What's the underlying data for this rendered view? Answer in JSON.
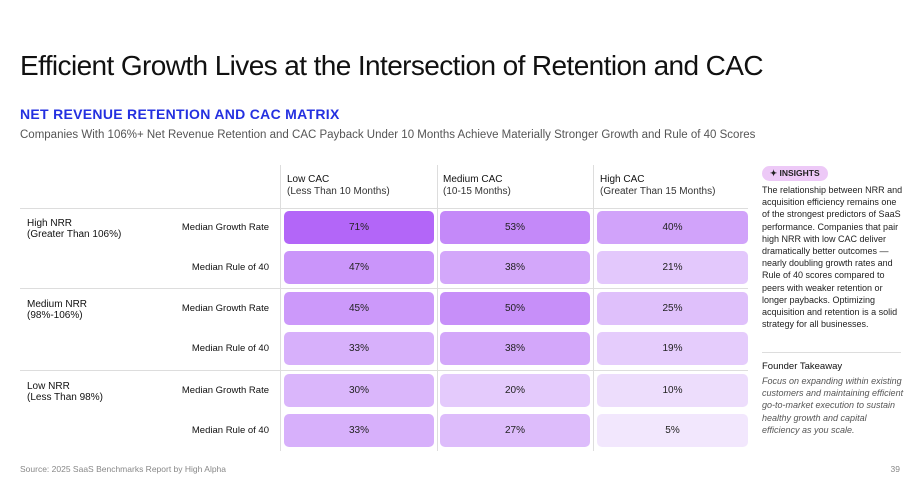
{
  "title": "Efficient Growth Lives at the Intersection of Retention and CAC",
  "subtitle": "NET REVENUE RETENTION AND CAC MATRIX",
  "description": "Companies With 106%+ Net Revenue Retention and CAC Payback Under 10 Months Achieve Materially Stronger Growth and Rule of 40 Scores",
  "chart_data": {
    "type": "heatmap",
    "columns": [
      {
        "label": "Low CAC",
        "sub": "(Less Than 10 Months)"
      },
      {
        "label": "Medium CAC",
        "sub": "(10-15 Months)"
      },
      {
        "label": "High CAC",
        "sub": "(Greater Than 15 Months)"
      }
    ],
    "groups": [
      {
        "label": "High NRR",
        "sub": "(Greater Than 106%)",
        "rows": [
          {
            "metric": "Median Growth Rate",
            "values": [
              71,
              53,
              40
            ],
            "labels": [
              "71%",
              "53%",
              "40%"
            ]
          },
          {
            "metric": "Median Rule of 40",
            "values": [
              47,
              38,
              21
            ],
            "labels": [
              "47%",
              "38%",
              "21%"
            ]
          }
        ]
      },
      {
        "label": "Medium NRR",
        "sub": "(98%-106%)",
        "rows": [
          {
            "metric": "Median Growth Rate",
            "values": [
              45,
              50,
              25
            ],
            "labels": [
              "45%",
              "50%",
              "25%"
            ]
          },
          {
            "metric": "Median Rule of 40",
            "values": [
              33,
              38,
              19
            ],
            "labels": [
              "33%",
              "38%",
              "19%"
            ]
          }
        ]
      },
      {
        "label": "Low NRR",
        "sub": "(Less Than 98%)",
        "rows": [
          {
            "metric": "Median Growth Rate",
            "values": [
              30,
              20,
              10
            ],
            "labels": [
              "30%",
              "20%",
              "10%"
            ]
          },
          {
            "metric": "Median Rule of 40",
            "values": [
              33,
              27,
              5
            ],
            "labels": [
              "33%",
              "27%",
              "5%"
            ]
          }
        ]
      }
    ],
    "colors": {
      "high": "#b366f8",
      "low": "#f7f1fd"
    }
  },
  "insights": {
    "badge": "INSIGHTS",
    "icon": "sparkle-icon",
    "text": "The relationship between NRR and acquisition efficiency remains one of the strongest predictors of SaaS performance. Companies that pair high NRR with low CAC deliver dramatically better outcomes — nearly doubling growth rates and Rule of 40 scores compared to peers with weaker retention or longer paybacks. Optimizing acquisition and retention is a solid strategy for all businesses.",
    "takeaway_title": "Founder Takeaway",
    "takeaway_text": "Focus on expanding within existing customers and maintaining efficient go-to-market execution to sustain healthy growth and capital efficiency as you scale."
  },
  "source": "Source: 2025 SaaS Benchmarks Report by High Alpha",
  "page_number": "39"
}
